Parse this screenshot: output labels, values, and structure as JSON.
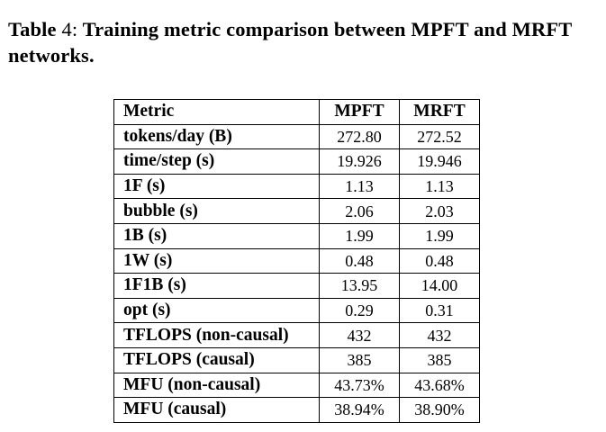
{
  "caption": {
    "prefix": "Table ",
    "number": "4:",
    "text": " Training metric comparison between MPFT and MRFT networks."
  },
  "table": {
    "columns": [
      "Metric",
      "MPFT",
      "MRFT"
    ],
    "rows": [
      [
        "tokens/day (B)",
        "272.80",
        "272.52"
      ],
      [
        "time/step (s)",
        "19.926",
        "19.946"
      ],
      [
        "1F (s)",
        "1.13",
        "1.13"
      ],
      [
        "bubble (s)",
        "2.06",
        "2.03"
      ],
      [
        "1B (s)",
        "1.99",
        "1.99"
      ],
      [
        "1W (s)",
        "0.48",
        "0.48"
      ],
      [
        "1F1B (s)",
        "13.95",
        "14.00"
      ],
      [
        "opt (s)",
        "0.29",
        "0.31"
      ],
      [
        "TFLOPS (non-causal)",
        "432",
        "432"
      ],
      [
        "TFLOPS (causal)",
        "385",
        "385"
      ],
      [
        "MFU (non-causal)",
        "43.73%",
        "43.68%"
      ],
      [
        "MFU (causal)",
        "38.94%",
        "38.90%"
      ]
    ]
  }
}
